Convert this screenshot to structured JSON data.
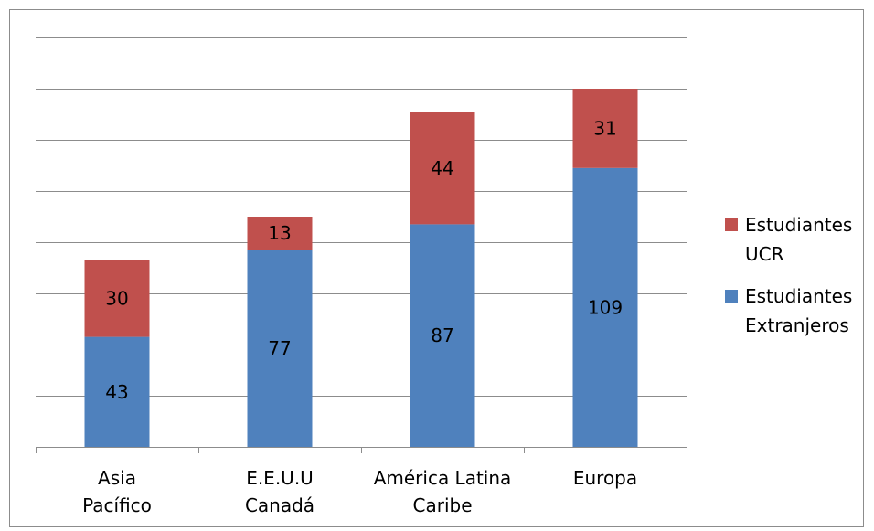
{
  "chart_data": {
    "type": "bar",
    "stacked": true,
    "title": "",
    "xlabel": "",
    "ylabel": "",
    "ylim": [
      0,
      160
    ],
    "y_tick_step": 20,
    "grid": true,
    "legend_position": "right",
    "y_tick_labels_shown": false,
    "categories": [
      [
        "Asia",
        "Pacífico"
      ],
      [
        "E.E.U.U",
        "Canadá"
      ],
      [
        "América Latina",
        "Caribe"
      ],
      [
        "Europa"
      ]
    ],
    "series": [
      {
        "name": "Estudiantes Extranjeros",
        "color": "#4f81bd",
        "values": [
          43,
          77,
          87,
          109
        ]
      },
      {
        "name": "Estudiantes UCR",
        "color": "#c0504d",
        "values": [
          30,
          13,
          44,
          31
        ]
      }
    ]
  }
}
